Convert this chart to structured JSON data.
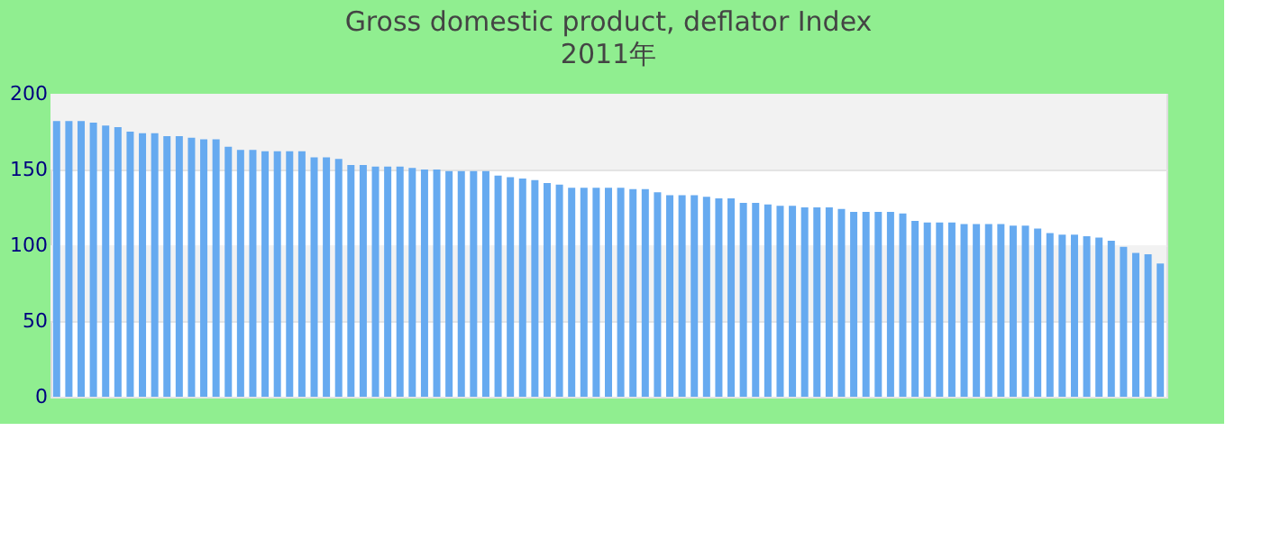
{
  "chart_data": {
    "type": "bar",
    "title": "Gross domestic product, deflator  Index",
    "subtitle": "2011年",
    "categories": [
      null,
      null,
      null,
      null,
      null,
      null,
      null,
      null,
      null,
      null,
      null,
      null,
      null,
      null,
      null,
      null,
      null,
      null,
      null,
      null,
      null,
      null,
      null,
      null,
      null,
      null,
      null,
      null,
      null,
      null,
      null,
      null,
      null,
      null,
      null,
      null,
      null,
      null,
      null,
      null,
      null,
      null,
      null,
      null,
      null,
      null,
      null,
      null,
      null,
      null,
      null,
      null,
      null,
      null,
      null,
      null,
      null,
      null,
      null,
      null,
      null,
      null,
      null,
      null,
      null,
      null,
      null,
      null,
      null,
      null,
      null,
      null,
      null,
      null,
      null,
      null,
      null,
      null,
      null,
      null,
      null,
      null,
      null,
      null,
      null,
      null,
      null,
      null,
      null,
      null,
      null
    ],
    "values": [
      182,
      182,
      182,
      181,
      179,
      178,
      175,
      174,
      174,
      172,
      172,
      171,
      170,
      170,
      165,
      163,
      163,
      162,
      162,
      162,
      162,
      158,
      158,
      157,
      153,
      153,
      152,
      152,
      152,
      151,
      150,
      150,
      149,
      149,
      149,
      149,
      146,
      145,
      144,
      143,
      141,
      140,
      138,
      138,
      138,
      138,
      138,
      137,
      137,
      135,
      133,
      133,
      133,
      132,
      131,
      131,
      128,
      128,
      127,
      126,
      126,
      125,
      125,
      125,
      124,
      122,
      122,
      122,
      122,
      121,
      116,
      115,
      115,
      115,
      114,
      114,
      114,
      114,
      113,
      113,
      111,
      108,
      107,
      107,
      106,
      105,
      103,
      99,
      95,
      94,
      88
    ],
    "color": "#66aaf0",
    "ylim": [
      0,
      200
    ],
    "yticks": [
      0,
      50,
      100,
      150,
      200
    ],
    "grid": "y"
  }
}
